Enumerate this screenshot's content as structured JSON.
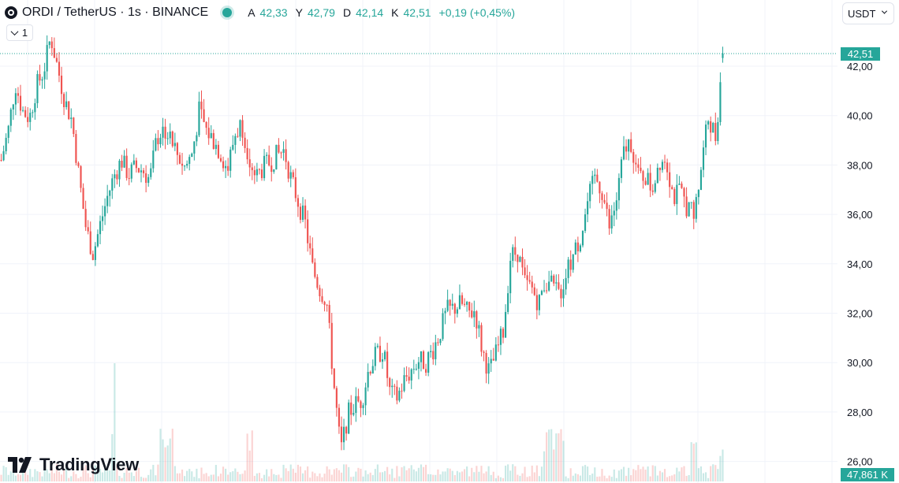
{
  "header": {
    "title": "ORDI / TetherUS · 1s · BINANCE",
    "ohlc": [
      {
        "key": "A",
        "value": "42,33"
      },
      {
        "key": "Y",
        "value": "42,79"
      },
      {
        "key": "D",
        "value": "42,14"
      },
      {
        "key": "K",
        "value": "42,51"
      }
    ],
    "change": "+0,19 (+0,45%)"
  },
  "toolbar": {
    "collapse_count": "1",
    "currency": "USDT"
  },
  "price_scale": {
    "ticks": [
      "42,00",
      "40,00",
      "38,00",
      "36,00",
      "34,00",
      "32,00",
      "30,00",
      "28,00",
      "26,00"
    ],
    "last_price": "42,51"
  },
  "volume": {
    "last_volume": "47,861 K"
  },
  "branding": {
    "logo_text": "TradingView"
  },
  "colors": {
    "up": "#26a69a",
    "down": "#ef5350",
    "grid": "#f0f3fa",
    "text": "#131722"
  },
  "chart_data": {
    "type": "candlestick",
    "symbol": "ORDI / TetherUS",
    "interval": "1s",
    "exchange": "BINANCE",
    "ylim": [
      25.7,
      43.6
    ],
    "y_ticks": [
      26,
      28,
      30,
      32,
      34,
      36,
      38,
      40,
      42
    ],
    "last_price": 42.51,
    "last_ohlc": {
      "open": 42.33,
      "high": 42.79,
      "low": 42.14,
      "close": 42.51
    },
    "close_series": [
      38.2,
      39.4,
      41.3,
      40.2,
      39.9,
      41.2,
      41.8,
      43.2,
      41.9,
      40.6,
      39.8,
      37.5,
      35.4,
      34.4,
      35.6,
      36.7,
      37.6,
      38.2,
      37.6,
      37.9,
      37.8,
      37.4,
      39.1,
      39.5,
      39.0,
      38.4,
      37.9,
      38.5,
      40.2,
      39.4,
      39.0,
      38.5,
      37.8,
      39.2,
      39.7,
      38.4,
      37.5,
      37.9,
      38.1,
      38.4,
      38.6,
      37.4,
      36.5,
      35.6,
      33.8,
      33.0,
      32.5,
      29.2,
      26.4,
      27.9,
      28.3,
      28.5,
      29.8,
      30.3,
      30.5,
      28.7,
      28.6,
      29.3,
      29.7,
      30.1,
      30.0,
      30.5,
      31.2,
      32.1,
      32.2,
      32.4,
      32.0,
      32.1,
      30.5,
      29.6,
      30.4,
      31.3,
      34.3,
      34.5,
      33.2,
      33.0,
      32.4,
      33.4,
      33.0,
      32.8,
      33.7,
      34.4,
      35.2,
      36.6,
      37.5,
      36.9,
      35.4,
      36.6,
      38.5,
      39.0,
      37.5,
      37.6,
      37.0,
      38.2,
      38.3,
      36.7,
      36.9,
      36.3,
      36.0,
      38.0,
      40.0,
      39.1,
      42.51
    ],
    "volume_spikes_at": [
      23,
      24,
      35,
      77,
      78,
      79,
      98,
      102
    ]
  }
}
